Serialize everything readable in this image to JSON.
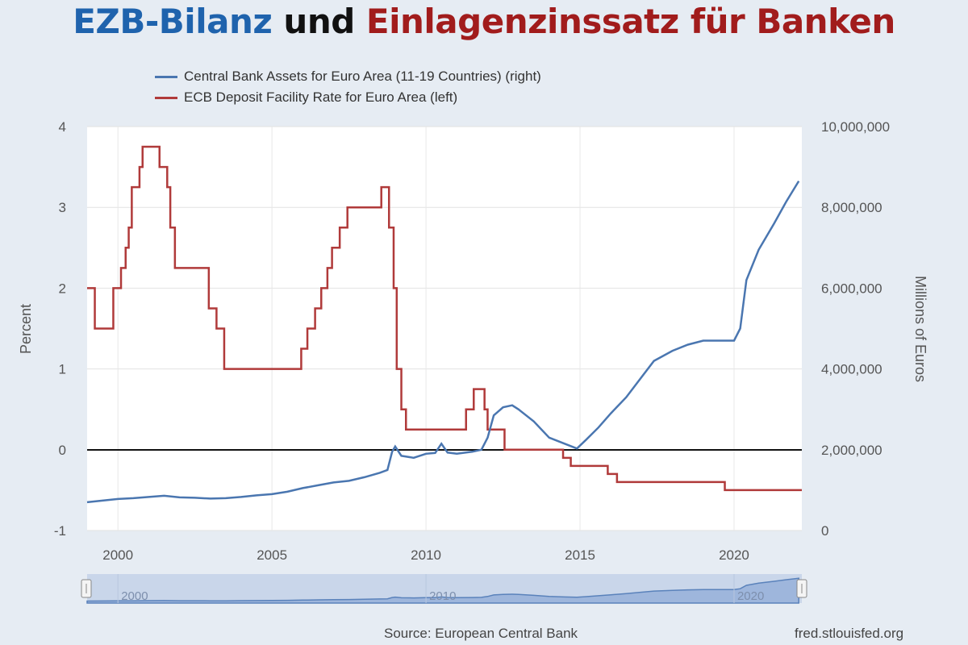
{
  "title": {
    "part1": "EZB-Bilanz",
    "part2": "und",
    "part3": "Einlagenzinssatz für Banken"
  },
  "colors": {
    "title_blue": "#1f63ad",
    "title_black": "#111111",
    "title_red": "#a11c1c",
    "assets_line": "#4a76b0",
    "rate_line": "#b03a3a",
    "navigator_fill": "#9eb6dc"
  },
  "footer": {
    "source": "Source: European Central Bank",
    "site": "fred.stlouisfed.org"
  },
  "chart_data": {
    "type": "line",
    "legend_placement": "top-left",
    "grid": true,
    "xlim": [
      1999.0,
      2022.2
    ],
    "x_ticks": [
      "2000",
      "2005",
      "2010",
      "2015",
      "2020"
    ],
    "y_left": {
      "label": "Percent",
      "lim": [
        -1,
        4
      ],
      "ticks": [
        "4",
        "3",
        "2",
        "1",
        "0",
        "-1"
      ]
    },
    "y_right": {
      "label": "Millions of Euros",
      "lim": [
        0,
        10000000
      ],
      "ticks": [
        "10,000,000",
        "8,000,000",
        "6,000,000",
        "4,000,000",
        "2,000,000",
        "0"
      ]
    },
    "navigator": {
      "ticks": [
        "2000",
        "2010",
        "2020"
      ]
    },
    "series": [
      {
        "name": "Central Bank Assets for Euro Area (11-19 Countries) (right)",
        "axis": "right",
        "step": false,
        "points": [
          [
            1999.0,
            700000
          ],
          [
            1999.5,
            740000
          ],
          [
            2000.0,
            780000
          ],
          [
            2000.5,
            800000
          ],
          [
            2001.0,
            830000
          ],
          [
            2001.5,
            860000
          ],
          [
            2002.0,
            820000
          ],
          [
            2002.5,
            810000
          ],
          [
            2003.0,
            790000
          ],
          [
            2003.5,
            800000
          ],
          [
            2004.0,
            830000
          ],
          [
            2004.5,
            870000
          ],
          [
            2005.0,
            900000
          ],
          [
            2005.5,
            960000
          ],
          [
            2006.0,
            1050000
          ],
          [
            2006.5,
            1120000
          ],
          [
            2007.0,
            1190000
          ],
          [
            2007.5,
            1230000
          ],
          [
            2008.0,
            1320000
          ],
          [
            2008.5,
            1430000
          ],
          [
            2008.75,
            1500000
          ],
          [
            2008.9,
            1950000
          ],
          [
            2009.0,
            2080000
          ],
          [
            2009.2,
            1850000
          ],
          [
            2009.6,
            1800000
          ],
          [
            2010.0,
            1900000
          ],
          [
            2010.3,
            1920000
          ],
          [
            2010.5,
            2150000
          ],
          [
            2010.7,
            1930000
          ],
          [
            2011.0,
            1900000
          ],
          [
            2011.5,
            1950000
          ],
          [
            2011.8,
            2000000
          ],
          [
            2012.0,
            2300000
          ],
          [
            2012.2,
            2850000
          ],
          [
            2012.5,
            3050000
          ],
          [
            2012.8,
            3100000
          ],
          [
            2013.0,
            3000000
          ],
          [
            2013.5,
            2700000
          ],
          [
            2014.0,
            2300000
          ],
          [
            2014.5,
            2150000
          ],
          [
            2014.9,
            2030000
          ],
          [
            2015.2,
            2250000
          ],
          [
            2015.6,
            2550000
          ],
          [
            2016.0,
            2900000
          ],
          [
            2016.5,
            3300000
          ],
          [
            2017.0,
            3800000
          ],
          [
            2017.4,
            4200000
          ],
          [
            2018.0,
            4450000
          ],
          [
            2018.5,
            4600000
          ],
          [
            2019.0,
            4700000
          ],
          [
            2019.6,
            4700000
          ],
          [
            2020.0,
            4700000
          ],
          [
            2020.2,
            5000000
          ],
          [
            2020.4,
            6200000
          ],
          [
            2020.8,
            6950000
          ],
          [
            2021.3,
            7600000
          ],
          [
            2021.7,
            8150000
          ],
          [
            2022.1,
            8650000
          ]
        ]
      },
      {
        "name": "ECB Deposit Facility Rate for Euro Area (left)",
        "axis": "left",
        "step": true,
        "points": [
          [
            1999.0,
            2.0
          ],
          [
            1999.25,
            1.5
          ],
          [
            1999.85,
            2.0
          ],
          [
            2000.1,
            2.25
          ],
          [
            2000.25,
            2.5
          ],
          [
            2000.35,
            2.75
          ],
          [
            2000.45,
            3.25
          ],
          [
            2000.7,
            3.5
          ],
          [
            2000.8,
            3.75
          ],
          [
            2001.35,
            3.5
          ],
          [
            2001.6,
            3.25
          ],
          [
            2001.7,
            2.75
          ],
          [
            2001.85,
            2.25
          ],
          [
            2002.95,
            1.75
          ],
          [
            2003.2,
            1.5
          ],
          [
            2003.45,
            1.0
          ],
          [
            2005.95,
            1.25
          ],
          [
            2006.15,
            1.5
          ],
          [
            2006.4,
            1.75
          ],
          [
            2006.6,
            2.0
          ],
          [
            2006.8,
            2.25
          ],
          [
            2006.95,
            2.5
          ],
          [
            2007.2,
            2.75
          ],
          [
            2007.45,
            3.0
          ],
          [
            2008.55,
            3.25
          ],
          [
            2008.8,
            2.75
          ],
          [
            2008.95,
            2.0
          ],
          [
            2009.05,
            1.0
          ],
          [
            2009.2,
            0.5
          ],
          [
            2009.35,
            0.25
          ],
          [
            2011.3,
            0.5
          ],
          [
            2011.55,
            0.75
          ],
          [
            2011.9,
            0.5
          ],
          [
            2012.0,
            0.25
          ],
          [
            2012.55,
            0.0
          ],
          [
            2014.45,
            -0.1
          ],
          [
            2014.7,
            -0.2
          ],
          [
            2015.9,
            -0.3
          ],
          [
            2016.2,
            -0.4
          ],
          [
            2019.7,
            -0.5
          ],
          [
            2022.2,
            -0.5
          ]
        ]
      }
    ]
  }
}
